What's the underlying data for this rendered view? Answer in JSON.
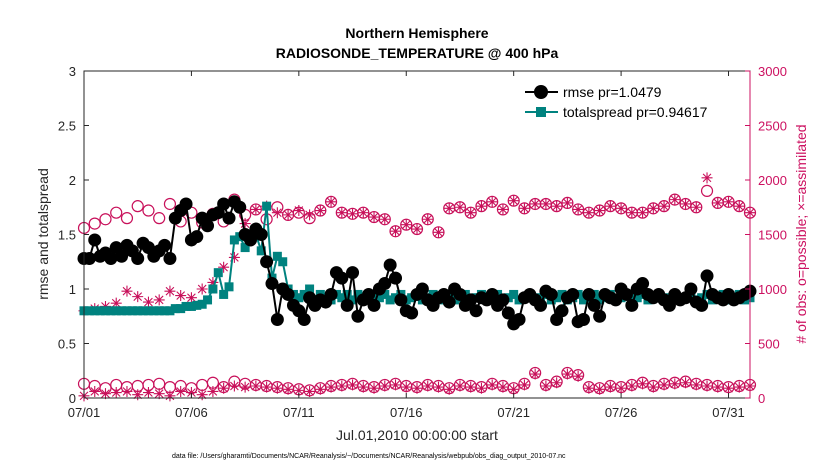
{
  "chart_data": {
    "type": "line",
    "title": "Northern Hemisphere",
    "subtitle": "RADIOSONDE_TEMPERATURE @ 400 hPa",
    "xlabel": "Jul.01,2010 00:00:00 start",
    "ylabel": "rmse and totalspread",
    "y2label": "# of obs: o=possible; ×=assimilated",
    "footnote": "data file: /Users/gharamti/Documents/NCAR/Reanalysis/~/Documents/NCAR/Reanalysis/webpub/obs_diag_output_2010-07.nc",
    "xlim": [
      1,
      32
    ],
    "ylim": [
      0,
      3
    ],
    "y2lim": [
      0,
      3000
    ],
    "x_tick_values": [
      1,
      6,
      11,
      16,
      21,
      26,
      31
    ],
    "x_tick_labels": [
      "07/01",
      "07/06",
      "07/11",
      "07/16",
      "07/21",
      "07/26",
      "07/31"
    ],
    "y_ticks": [
      "0",
      "0.5",
      "1",
      "1.5",
      "2",
      "2.5",
      "3"
    ],
    "y2_ticks": [
      "0",
      "500",
      "1000",
      "1500",
      "2000",
      "2500",
      "3000"
    ],
    "legend_position": "top-right",
    "grid": false,
    "colors": {
      "rmse": "#000000",
      "totalspread": "#00827f",
      "obs": "#c8105a"
    },
    "series": [
      {
        "name": "rmse pr=1.0479",
        "axis": "left",
        "marker": "circle",
        "x": [
          1.0,
          1.25,
          1.5,
          1.75,
          2.0,
          2.25,
          2.5,
          2.75,
          3.0,
          3.25,
          3.5,
          3.75,
          4.0,
          4.25,
          4.5,
          4.75,
          5.0,
          5.25,
          5.5,
          5.75,
          6.0,
          6.25,
          6.5,
          6.75,
          7.0,
          7.25,
          7.5,
          7.75,
          8.0,
          8.25,
          8.5,
          8.75,
          9.0,
          9.25,
          9.5,
          9.75,
          10.0,
          10.25,
          10.5,
          10.75,
          11.0,
          11.25,
          11.5,
          11.75,
          12.0,
          12.25,
          12.5,
          12.75,
          13.0,
          13.25,
          13.5,
          13.75,
          14.0,
          14.25,
          14.5,
          14.75,
          15.0,
          15.25,
          15.5,
          15.75,
          16.0,
          16.25,
          16.5,
          16.75,
          17.0,
          17.25,
          17.5,
          17.75,
          18.0,
          18.25,
          18.5,
          18.75,
          19.0,
          19.25,
          19.5,
          19.75,
          20.0,
          20.25,
          20.5,
          20.75,
          21.0,
          21.25,
          21.5,
          21.75,
          22.0,
          22.25,
          22.5,
          22.75,
          23.0,
          23.25,
          23.5,
          23.75,
          24.0,
          24.25,
          24.5,
          24.75,
          25.0,
          25.25,
          25.5,
          25.75,
          26.0,
          26.25,
          26.5,
          26.75,
          27.0,
          27.25,
          27.5,
          27.75,
          28.0,
          28.25,
          28.5,
          28.75,
          29.0,
          29.25,
          29.5,
          29.75,
          30.0,
          30.25,
          30.5,
          30.75,
          31.0,
          31.25,
          31.5,
          31.75,
          32.0
        ],
        "y": [
          1.28,
          1.28,
          1.45,
          1.3,
          1.33,
          1.28,
          1.38,
          1.3,
          1.4,
          1.35,
          1.28,
          1.42,
          1.38,
          1.3,
          1.35,
          1.4,
          1.28,
          1.65,
          1.72,
          1.78,
          1.45,
          1.48,
          1.65,
          1.58,
          1.68,
          1.7,
          1.78,
          1.65,
          1.8,
          1.75,
          1.5,
          1.45,
          1.55,
          1.5,
          1.25,
          1.05,
          0.72,
          1.0,
          0.95,
          0.85,
          0.8,
          0.72,
          0.92,
          0.85,
          0.9,
          0.88,
          0.95,
          1.15,
          1.1,
          0.85,
          1.15,
          0.75,
          0.9,
          0.95,
          0.85,
          1.0,
          1.05,
          1.22,
          1.1,
          0.9,
          0.8,
          0.78,
          0.95,
          1.0,
          0.9,
          0.85,
          0.92,
          0.95,
          0.88,
          1.0,
          0.95,
          0.85,
          0.9,
          0.8,
          0.92,
          0.9,
          0.95,
          0.85,
          0.9,
          0.78,
          0.68,
          0.72,
          0.92,
          0.95,
          0.9,
          0.85,
          0.98,
          0.95,
          0.72,
          0.8,
          0.92,
          0.95,
          0.7,
          0.72,
          0.95,
          0.85,
          0.75,
          0.95,
          0.92,
          0.9,
          1.0,
          0.95,
          0.85,
          1.0,
          1.05,
          0.95,
          0.92,
          0.95,
          0.9,
          0.85,
          0.95,
          0.9,
          0.92,
          1.0,
          0.88,
          0.85,
          1.12,
          0.95,
          0.92,
          0.9,
          0.95,
          0.9,
          0.92,
          0.95,
          0.98
        ]
      },
      {
        "name": "totalspread pr=0.94617",
        "axis": "left",
        "marker": "square",
        "x": [
          1.0,
          1.25,
          1.5,
          1.75,
          2.0,
          2.25,
          2.5,
          2.75,
          3.0,
          3.25,
          3.5,
          3.75,
          4.0,
          4.25,
          4.5,
          4.75,
          5.0,
          5.25,
          5.5,
          5.75,
          6.0,
          6.25,
          6.5,
          6.75,
          7.0,
          7.25,
          7.5,
          7.75,
          8.0,
          8.25,
          8.5,
          8.75,
          9.0,
          9.25,
          9.5,
          9.75,
          10.0,
          10.25,
          10.5,
          10.75,
          11.0,
          11.25,
          11.5,
          11.75,
          12.0,
          12.25,
          12.5,
          12.75,
          13.0,
          13.25,
          13.5,
          13.75,
          14.0,
          14.25,
          14.5,
          14.75,
          15.0,
          15.25,
          15.5,
          15.75,
          16.0,
          16.25,
          16.5,
          16.75,
          17.0,
          17.25,
          17.5,
          17.75,
          18.0,
          18.25,
          18.5,
          18.75,
          19.0,
          19.25,
          19.5,
          19.75,
          20.0,
          20.25,
          20.5,
          20.75,
          21.0,
          21.25,
          21.5,
          21.75,
          22.0,
          22.25,
          22.5,
          22.75,
          23.0,
          23.25,
          23.5,
          23.75,
          24.0,
          24.25,
          24.5,
          24.75,
          25.0,
          25.25,
          25.5,
          25.75,
          26.0,
          26.25,
          26.5,
          26.75,
          27.0,
          27.25,
          27.5,
          27.75,
          28.0,
          28.25,
          28.5,
          28.75,
          29.0,
          29.25,
          29.5,
          29.75,
          30.0,
          30.25,
          30.5,
          30.75,
          31.0,
          31.25,
          31.5,
          31.75,
          32.0
        ],
        "y": [
          0.8,
          0.8,
          0.8,
          0.8,
          0.8,
          0.8,
          0.8,
          0.8,
          0.8,
          0.8,
          0.8,
          0.8,
          0.8,
          0.8,
          0.8,
          0.8,
          0.8,
          0.82,
          0.82,
          0.84,
          0.84,
          0.85,
          0.86,
          0.9,
          1.0,
          1.15,
          0.95,
          1.02,
          1.45,
          1.48,
          1.38,
          1.45,
          1.5,
          1.35,
          1.76,
          1.1,
          1.3,
          1.25,
          1.0,
          0.95,
          0.92,
          0.95,
          1.0,
          0.9,
          0.95,
          0.92,
          0.9,
          0.95,
          0.92,
          0.95,
          0.9,
          0.95,
          0.92,
          0.95,
          0.9,
          0.92,
          0.95,
          0.9,
          0.92,
          0.95,
          0.9,
          0.92,
          0.95,
          0.9,
          0.92,
          0.95,
          0.9,
          0.92,
          0.95,
          0.9,
          0.92,
          0.95,
          0.9,
          0.92,
          0.95,
          0.9,
          0.92,
          0.95,
          0.9,
          0.92,
          0.95,
          0.9,
          0.92,
          0.95,
          0.9,
          0.92,
          0.95,
          0.9,
          0.92,
          0.95,
          0.9,
          0.92,
          0.95,
          0.9,
          0.92,
          0.95,
          0.9,
          0.92,
          0.95,
          0.9,
          0.92,
          0.95,
          0.9,
          0.92,
          0.95,
          0.9,
          0.92,
          0.95,
          0.9,
          0.92,
          0.95,
          0.9,
          0.92,
          0.95,
          0.9,
          0.92,
          0.95,
          0.9,
          0.92,
          0.95,
          0.9,
          0.92,
          0.95,
          0.9,
          0.92
        ]
      },
      {
        "name": "obs possible (upper)",
        "axis": "right",
        "marker": "open-circle",
        "x": [
          1.0,
          1.5,
          2.0,
          2.5,
          3.0,
          3.5,
          4.0,
          4.5,
          5.0,
          5.5,
          6.0,
          6.5,
          7.0,
          7.5,
          8.0,
          8.5,
          9.0,
          9.5,
          10.0,
          10.5,
          11.0,
          11.5,
          12.0,
          12.5,
          13.0,
          13.5,
          14.0,
          14.5,
          15.0,
          15.5,
          16.0,
          16.5,
          17.0,
          17.5,
          18.0,
          18.5,
          19.0,
          19.5,
          20.0,
          20.5,
          21.0,
          21.5,
          22.0,
          22.5,
          23.0,
          23.5,
          24.0,
          24.5,
          25.0,
          25.5,
          26.0,
          26.5,
          27.0,
          27.5,
          28.0,
          28.5,
          29.0,
          29.5,
          30.0,
          30.5,
          31.0,
          31.5,
          32.0
        ],
        "y": [
          1560,
          1600,
          1640,
          1700,
          1650,
          1760,
          1720,
          1650,
          1780,
          1620,
          1700,
          1610,
          1690,
          1620,
          1820,
          1680,
          1730,
          1640,
          1750,
          1680,
          1700,
          1650,
          1720,
          1800,
          1700,
          1690,
          1700,
          1660,
          1640,
          1530,
          1590,
          1550,
          1640,
          1520,
          1740,
          1750,
          1700,
          1760,
          1800,
          1730,
          1810,
          1740,
          1780,
          1780,
          1760,
          1790,
          1730,
          1700,
          1720,
          1760,
          1740,
          1700,
          1700,
          1740,
          1760,
          1820,
          1780,
          1750,
          1900,
          1790,
          1800,
          1760,
          1700
        ]
      },
      {
        "name": "obs assimilated (upper)",
        "axis": "right",
        "marker": "asterisk",
        "x": [
          1.0,
          1.5,
          2.0,
          2.5,
          3.0,
          3.5,
          4.0,
          4.5,
          5.0,
          5.5,
          6.0,
          6.5,
          7.0,
          7.5,
          8.0,
          8.5,
          9.0,
          9.5,
          10.0,
          10.5,
          11.0,
          11.5,
          12.0,
          12.5,
          13.0,
          13.5,
          14.0,
          14.5,
          15.0,
          15.5,
          16.0,
          16.5,
          17.0,
          17.5,
          18.0,
          18.5,
          19.0,
          19.5,
          20.0,
          20.5,
          21.0,
          21.5,
          22.0,
          22.5,
          23.0,
          23.5,
          24.0,
          24.5,
          25.0,
          25.5,
          26.0,
          26.5,
          27.0,
          27.5,
          28.0,
          28.5,
          29.0,
          29.5,
          30.0,
          30.5,
          31.0,
          31.5,
          32.0
        ],
        "y": [
          800,
          820,
          840,
          870,
          980,
          930,
          880,
          900,
          980,
          940,
          920,
          1000,
          1060,
          1200,
          1290,
          1600,
          1730,
          1760,
          1700,
          1680,
          1720,
          1680,
          1720,
          1800,
          1700,
          1690,
          1700,
          1660,
          1640,
          1530,
          1590,
          1550,
          1640,
          1520,
          1740,
          1750,
          1700,
          1760,
          1800,
          1730,
          1810,
          1740,
          1780,
          1780,
          1760,
          1790,
          1730,
          1700,
          1720,
          1760,
          1740,
          1700,
          1700,
          1740,
          1760,
          1820,
          1780,
          1750,
          2020,
          1790,
          1800,
          1760,
          1700
        ]
      },
      {
        "name": "obs possible (lower)",
        "axis": "right",
        "marker": "open-circle",
        "x": [
          1.0,
          1.5,
          2.0,
          2.5,
          3.0,
          3.5,
          4.0,
          4.5,
          5.0,
          5.5,
          6.0,
          6.5,
          7.0,
          7.5,
          8.0,
          8.5,
          9.0,
          9.5,
          10.0,
          10.5,
          11.0,
          11.5,
          12.0,
          12.5,
          13.0,
          13.5,
          14.0,
          14.5,
          15.0,
          15.5,
          16.0,
          16.5,
          17.0,
          17.5,
          18.0,
          18.5,
          19.0,
          19.5,
          20.0,
          20.5,
          21.0,
          21.5,
          22.0,
          22.5,
          23.0,
          23.5,
          24.0,
          24.5,
          25.0,
          25.5,
          26.0,
          26.5,
          27.0,
          27.5,
          28.0,
          28.5,
          29.0,
          29.5,
          30.0,
          30.5,
          31.0,
          31.5,
          32.0
        ],
        "y": [
          130,
          110,
          90,
          120,
          100,
          110,
          120,
          130,
          100,
          110,
          90,
          120,
          140,
          100,
          150,
          130,
          120,
          110,
          100,
          90,
          80,
          70,
          90,
          110,
          120,
          130,
          110,
          100,
          120,
          130,
          110,
          100,
          120,
          110,
          90,
          120,
          110,
          100,
          130,
          110,
          90,
          130,
          230,
          120,
          150,
          230,
          210,
          100,
          90,
          110,
          100,
          120,
          140,
          110,
          130,
          140,
          150,
          130,
          120,
          110,
          100,
          110,
          120
        ]
      },
      {
        "name": "obs assimilated (lower)",
        "axis": "right",
        "marker": "asterisk",
        "x": [
          1.0,
          1.5,
          2.0,
          2.5,
          3.0,
          3.5,
          4.0,
          4.5,
          5.0,
          5.5,
          6.0,
          6.5,
          7.0,
          7.5,
          8.0,
          8.5,
          9.0,
          9.5,
          10.0,
          10.5,
          11.0,
          11.5,
          12.0,
          12.5,
          13.0,
          13.5,
          14.0,
          14.5,
          15.0,
          15.5,
          16.0,
          16.5,
          17.0,
          17.5,
          18.0,
          18.5,
          19.0,
          19.5,
          20.0,
          20.5,
          21.0,
          21.5,
          22.0,
          22.5,
          23.0,
          23.5,
          24.0,
          24.5,
          25.0,
          25.5,
          26.0,
          26.5,
          27.0,
          27.5,
          28.0,
          28.5,
          29.0,
          29.5,
          30.0,
          30.5,
          31.0,
          31.5,
          32.0
        ],
        "y": [
          20,
          60,
          40,
          50,
          60,
          30,
          50,
          40,
          20,
          60,
          50,
          30,
          60,
          90,
          110,
          100,
          110,
          100,
          90,
          80,
          70,
          60,
          80,
          100,
          110,
          120,
          100,
          90,
          110,
          120,
          100,
          90,
          110,
          100,
          80,
          110,
          100,
          90,
          120,
          100,
          80,
          120,
          220,
          110,
          140,
          220,
          200,
          90,
          80,
          100,
          90,
          110,
          130,
          100,
          120,
          130,
          140,
          120,
          110,
          100,
          90,
          100,
          110
        ]
      }
    ]
  }
}
